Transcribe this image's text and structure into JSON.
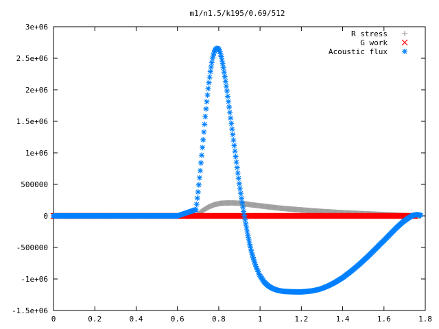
{
  "chart_data": {
    "type": "scatter",
    "title": "m1/n1.5/k195/0.69/512",
    "xlabel": "",
    "ylabel": "",
    "xlim": [
      0,
      1.8
    ],
    "ylim": [
      -1500000,
      3000000
    ],
    "grid": false,
    "legend_position": "top-right",
    "x_ticks": [
      {
        "value": 0,
        "label": "0"
      },
      {
        "value": 0.2,
        "label": "0.2"
      },
      {
        "value": 0.4,
        "label": "0.4"
      },
      {
        "value": 0.6,
        "label": "0.6"
      },
      {
        "value": 0.8,
        "label": "0.8"
      },
      {
        "value": 1.0,
        "label": "1"
      },
      {
        "value": 1.2,
        "label": "1.2"
      },
      {
        "value": 1.4,
        "label": "1.4"
      },
      {
        "value": 1.6,
        "label": "1.6"
      },
      {
        "value": 1.8,
        "label": "1.8"
      }
    ],
    "y_ticks": [
      {
        "value": 3000000,
        "label": "3e+06"
      },
      {
        "value": 2500000,
        "label": "2.5e+06"
      },
      {
        "value": 2000000,
        "label": "2e+06"
      },
      {
        "value": 1500000,
        "label": "1.5e+06"
      },
      {
        "value": 1000000,
        "label": "1e+06"
      },
      {
        "value": 500000,
        "label": "500000"
      },
      {
        "value": 0,
        "label": "0"
      },
      {
        "value": -500000,
        "label": "-500000"
      },
      {
        "value": -1000000,
        "label": "-1e+06"
      },
      {
        "value": -1500000,
        "label": "-1.5e+06"
      }
    ],
    "series": [
      {
        "name": "R stress",
        "marker": "plus",
        "color": "#a0a0a0",
        "x": [
          0.0,
          0.1,
          0.2,
          0.3,
          0.4,
          0.5,
          0.6,
          0.69,
          0.72,
          0.75,
          0.78,
          0.81,
          0.84,
          0.87,
          0.9,
          0.93,
          0.96,
          1.0,
          1.05,
          1.1,
          1.15,
          1.2,
          1.25,
          1.3,
          1.35,
          1.4,
          1.45,
          1.5,
          1.55,
          1.6,
          1.65,
          1.7,
          1.75,
          1.78
        ],
        "y": [
          0,
          0,
          0,
          0,
          0,
          0,
          0,
          0,
          80000,
          140000,
          180000,
          200000,
          205000,
          205000,
          200000,
          190000,
          175000,
          160000,
          140000,
          122000,
          108000,
          95000,
          82000,
          70000,
          60000,
          50000,
          42000,
          35000,
          28000,
          20000,
          12000,
          5000,
          0,
          0
        ]
      },
      {
        "name": "G work",
        "marker": "cross",
        "color": "#ff0000",
        "x": [
          0.0,
          0.1,
          0.2,
          0.3,
          0.4,
          0.5,
          0.6,
          0.69,
          0.75,
          0.8,
          0.9,
          1.0,
          1.1,
          1.2,
          1.3,
          1.4,
          1.5,
          1.6,
          1.7,
          1.75
        ],
        "y": [
          0,
          0,
          0,
          0,
          0,
          0,
          0,
          0,
          0,
          0,
          0,
          0,
          0,
          0,
          0,
          0,
          0,
          0,
          0,
          0
        ]
      },
      {
        "name": "Acoustic flux",
        "marker": "star",
        "color": "#0080ff",
        "x": [
          0.0,
          0.1,
          0.2,
          0.3,
          0.4,
          0.5,
          0.6,
          0.69,
          0.7,
          0.71,
          0.72,
          0.73,
          0.74,
          0.75,
          0.76,
          0.77,
          0.78,
          0.79,
          0.8,
          0.81,
          0.82,
          0.83,
          0.84,
          0.85,
          0.86,
          0.87,
          0.88,
          0.89,
          0.9,
          0.91,
          0.92,
          0.93,
          0.94,
          0.95,
          0.96,
          0.97,
          0.98,
          0.99,
          1.0,
          1.02,
          1.04,
          1.06,
          1.08,
          1.1,
          1.12,
          1.15,
          1.18,
          1.2,
          1.22,
          1.25,
          1.28,
          1.3,
          1.33,
          1.36,
          1.4,
          1.44,
          1.48,
          1.52,
          1.56,
          1.6,
          1.63,
          1.66,
          1.69,
          1.72,
          1.74,
          1.76,
          1.78
        ],
        "y": [
          0,
          0,
          0,
          0,
          0,
          0,
          0,
          100000,
          380000,
          700000,
          1050000,
          1400000,
          1750000,
          2050000,
          2300000,
          2500000,
          2620000,
          2660000,
          2650000,
          2560000,
          2400000,
          2200000,
          1980000,
          1740000,
          1490000,
          1240000,
          990000,
          740000,
          500000,
          280000,
          80000,
          -110000,
          -290000,
          -450000,
          -590000,
          -700000,
          -800000,
          -880000,
          -950000,
          -1050000,
          -1110000,
          -1150000,
          -1175000,
          -1190000,
          -1198000,
          -1203000,
          -1205000,
          -1205000,
          -1200000,
          -1190000,
          -1170000,
          -1150000,
          -1110000,
          -1060000,
          -980000,
          -880000,
          -770000,
          -650000,
          -520000,
          -390000,
          -290000,
          -190000,
          -100000,
          -30000,
          10000,
          20000,
          10000
        ]
      }
    ]
  }
}
